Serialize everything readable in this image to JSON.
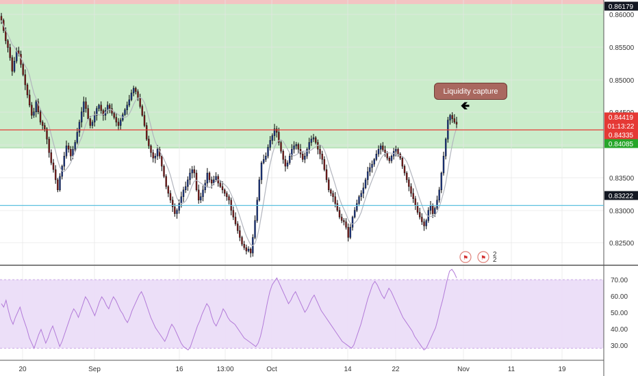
{
  "chart_data": [
    {
      "type": "candlestick",
      "panel": "price",
      "y_unit": "price",
      "ylim": [
        0.8235,
        0.8625
      ],
      "y_ticks": [
        "0.86000",
        "0.85500",
        "0.85000",
        "0.84500",
        "0.84000",
        "0.83500",
        "0.83000",
        "0.82500"
      ],
      "x_ticks": [
        "20",
        "Sep",
        "16",
        "13:00",
        "Oct",
        "14",
        "22",
        "Nov",
        "11",
        "19"
      ],
      "grid": true,
      "zones": [
        {
          "name": "supply zone",
          "from": 0.8407,
          "to": 0.8625,
          "color": "#c8ebc8"
        },
        {
          "name": "top band",
          "from": 0.8619,
          "to": 0.8625,
          "color": "#f4c2c2"
        }
      ],
      "levels": [
        {
          "value": 0.84335,
          "color": "#e53935"
        },
        {
          "value": 0.83222,
          "color": "#5bc0de"
        }
      ],
      "price_tags": [
        {
          "label": "0.86179",
          "value": 0.86179,
          "color": "#131722"
        },
        {
          "label": "0.84419",
          "value": 0.84419,
          "color": "#e53935"
        },
        {
          "label": "01:13:22",
          "value": 0.84375,
          "color": "#e53935"
        },
        {
          "label": "0.84335",
          "value": 0.84335,
          "color": "#e53935"
        },
        {
          "label": "0.84085",
          "value": 0.84085,
          "color": "#26a629"
        },
        {
          "label": "0.83222",
          "value": 0.83222,
          "color": "#131722"
        }
      ],
      "series": [
        {
          "name": "price",
          "close_path": [
            0.8595,
            0.858,
            0.8565,
            0.8555,
            0.854,
            0.852,
            0.8535,
            0.855,
            0.8545,
            0.853,
            0.8515,
            0.85,
            0.8485,
            0.847,
            0.8455,
            0.846,
            0.8475,
            0.846,
            0.8445,
            0.844,
            0.8435,
            0.842,
            0.84,
            0.8385,
            0.8375,
            0.836,
            0.8345,
            0.8365,
            0.838,
            0.8395,
            0.841,
            0.8405,
            0.8395,
            0.8405,
            0.8415,
            0.843,
            0.8445,
            0.846,
            0.8475,
            0.8465,
            0.845,
            0.844,
            0.8445,
            0.8455,
            0.8465,
            0.847,
            0.8462,
            0.8455,
            0.8462,
            0.847,
            0.8465,
            0.8458,
            0.8452,
            0.8445,
            0.844,
            0.8448,
            0.8456,
            0.8463,
            0.847,
            0.8478,
            0.8488,
            0.8495,
            0.849,
            0.848,
            0.8468,
            0.8455,
            0.844,
            0.842,
            0.841,
            0.84,
            0.8392,
            0.8395,
            0.8405,
            0.8395,
            0.838,
            0.8365,
            0.835,
            0.834,
            0.833,
            0.832,
            0.831,
            0.8315,
            0.8325,
            0.8335,
            0.8345,
            0.835,
            0.836,
            0.837,
            0.8375,
            0.837,
            0.8345,
            0.833,
            0.8335,
            0.8345,
            0.8355,
            0.837,
            0.836,
            0.8355,
            0.836,
            0.8365,
            0.8355,
            0.835,
            0.8345,
            0.834,
            0.8335,
            0.833,
            0.8315,
            0.8305,
            0.8295,
            0.8285,
            0.8275,
            0.8265,
            0.826,
            0.8255,
            0.8258,
            0.8252,
            0.8275,
            0.83,
            0.833,
            0.836,
            0.8385,
            0.839,
            0.8395,
            0.8408,
            0.8418,
            0.8425,
            0.8435,
            0.843,
            0.8415,
            0.8402,
            0.839,
            0.838,
            0.8385,
            0.8395,
            0.8405,
            0.841,
            0.8412,
            0.8405,
            0.8398,
            0.839,
            0.8395,
            0.8405,
            0.8415,
            0.842,
            0.8422,
            0.8415,
            0.8405,
            0.8398,
            0.839,
            0.8375,
            0.836,
            0.8345,
            0.834,
            0.8335,
            0.8325,
            0.8315,
            0.8305,
            0.83,
            0.8298,
            0.829,
            0.8275,
            0.829,
            0.8305,
            0.8315,
            0.8325,
            0.8335,
            0.834,
            0.8348,
            0.836,
            0.8372,
            0.8378,
            0.8383,
            0.839,
            0.8398,
            0.8405,
            0.841,
            0.8404,
            0.84,
            0.8392,
            0.8388,
            0.8395,
            0.8402,
            0.8405,
            0.8398,
            0.8392,
            0.838,
            0.837,
            0.836,
            0.835,
            0.834,
            0.8332,
            0.8322,
            0.8312,
            0.8305,
            0.8298,
            0.8292,
            0.83,
            0.8315,
            0.8322,
            0.831,
            0.8318,
            0.833,
            0.8345,
            0.837,
            0.8395,
            0.842,
            0.8448,
            0.8455,
            0.845,
            0.8445,
            0.8442
          ]
        },
        {
          "name": "moving average",
          "color": "#b2b5be"
        }
      ]
    },
    {
      "type": "line",
      "panel": "oscillator",
      "ylim": [
        23,
        78
      ],
      "y_ticks": [
        "70.00",
        "60.00",
        "50.00",
        "40.00",
        "30.00"
      ],
      "band": [
        30,
        70
      ],
      "band_color": "#eadcf7",
      "series": [
        {
          "name": "oscillator",
          "color": "#b27ad8",
          "values": [
            56,
            54,
            58,
            52,
            47,
            44,
            48,
            51,
            54,
            49,
            45,
            41,
            36,
            33,
            30,
            34,
            38,
            41,
            37,
            33,
            36,
            40,
            43,
            39,
            35,
            31,
            34,
            38,
            42,
            46,
            50,
            53,
            51,
            48,
            52,
            56,
            60,
            58,
            55,
            52,
            49,
            53,
            57,
            60,
            58,
            55,
            53,
            57,
            60,
            58,
            55,
            52,
            50,
            47,
            45,
            48,
            52,
            55,
            58,
            61,
            63,
            60,
            56,
            52,
            48,
            45,
            42,
            40,
            38,
            36,
            34,
            37,
            41,
            44,
            42,
            39,
            36,
            33,
            31,
            30,
            29,
            31,
            35,
            39,
            43,
            46,
            50,
            53,
            56,
            54,
            49,
            45,
            43,
            46,
            49,
            53,
            51,
            48,
            46,
            45,
            44,
            42,
            40,
            38,
            36,
            35,
            34,
            33,
            32,
            31,
            33,
            37,
            43,
            50,
            57,
            63,
            67,
            69,
            71,
            68,
            65,
            62,
            59,
            56,
            58,
            61,
            63,
            60,
            57,
            54,
            51,
            53,
            56,
            59,
            61,
            58,
            55,
            52,
            50,
            48,
            46,
            44,
            42,
            40,
            38,
            36,
            34,
            33,
            32,
            31,
            30,
            32,
            36,
            40,
            44,
            49,
            54,
            59,
            63,
            67,
            69,
            67,
            64,
            61,
            59,
            62,
            65,
            63,
            60,
            57,
            54,
            51,
            48,
            46,
            44,
            42,
            40,
            37,
            35,
            33,
            31,
            29,
            30,
            33,
            36,
            39,
            42,
            47,
            53,
            58,
            64,
            70,
            75,
            76,
            74,
            71
          ]
        }
      ]
    }
  ],
  "annotation": {
    "label": "Liquidity capture",
    "arrow": "🡸"
  },
  "calendar_markers": {
    "label": "2",
    "icon": "flag-icon"
  }
}
